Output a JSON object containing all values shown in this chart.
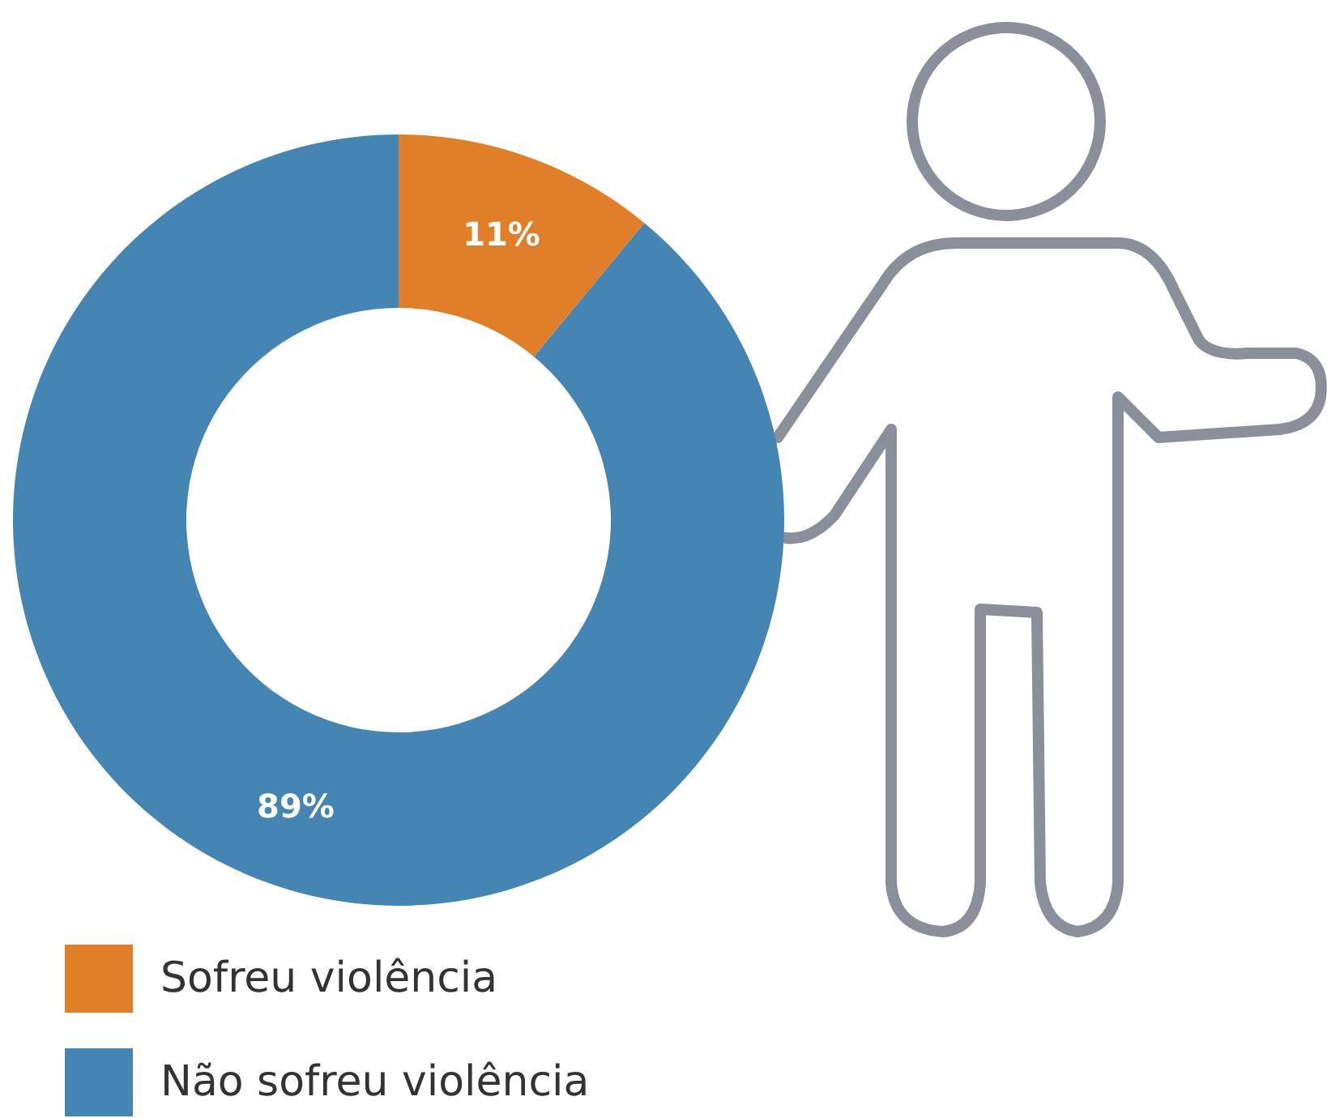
{
  "chart_data": {
    "type": "donut",
    "categories": [
      "Sofreu violência",
      "Não sofreu violência"
    ],
    "values": [
      11,
      89
    ],
    "colors": [
      "#e07f28",
      "#4585b4"
    ],
    "value_labels": [
      "11%",
      "89%"
    ],
    "legend": "bottom left"
  }
}
